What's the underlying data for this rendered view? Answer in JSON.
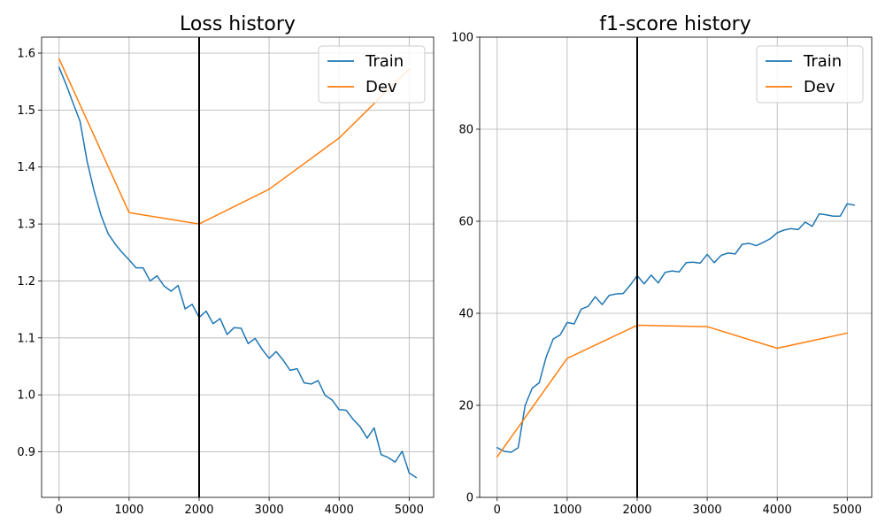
{
  "chart_data": [
    {
      "type": "line",
      "title": "Loss history",
      "xlabel": "",
      "ylabel": "",
      "xlim": [
        -250,
        5350
      ],
      "ylim": [
        0.82,
        1.628
      ],
      "xticks": [
        0,
        1000,
        2000,
        3000,
        4000,
        5000
      ],
      "xtick_labels": [
        "0",
        "1000",
        "2000",
        "3000",
        "4000",
        "5000"
      ],
      "yticks": [
        0.9,
        1.0,
        1.1,
        1.2,
        1.3,
        1.4,
        1.5,
        1.6
      ],
      "ytick_labels": [
        "0.9",
        "1.0",
        "1.1",
        "1.2",
        "1.3",
        "1.4",
        "1.5",
        "1.6"
      ],
      "grid": true,
      "legend_position": "top-right",
      "vline_x": 2000,
      "series": [
        {
          "name": "Train",
          "color": "#1f77b4",
          "x": [
            0,
            100,
            200,
            300,
            400,
            500,
            600,
            700,
            800,
            900,
            1000,
            1100,
            1200,
            1300,
            1400,
            1500,
            1600,
            1700,
            1800,
            1900,
            2000,
            2100,
            2200,
            2300,
            2400,
            2500,
            2600,
            2700,
            2800,
            2900,
            3000,
            3100,
            3200,
            3300,
            3400,
            3500,
            3600,
            3700,
            3800,
            3900,
            4000,
            4100,
            4200,
            4300,
            4400,
            4500,
            4600,
            4700,
            4800,
            4900,
            5000,
            5100
          ],
          "y": [
            1.575,
            1.545,
            1.512,
            1.48,
            1.41,
            1.358,
            1.315,
            1.283,
            1.265,
            1.25,
            1.237,
            1.223,
            1.223,
            1.2,
            1.209,
            1.191,
            1.182,
            1.192,
            1.151,
            1.159,
            1.136,
            1.147,
            1.125,
            1.134,
            1.106,
            1.118,
            1.117,
            1.09,
            1.099,
            1.08,
            1.064,
            1.076,
            1.061,
            1.043,
            1.046,
            1.021,
            1.019,
            1.025,
            0.999,
            0.991,
            0.974,
            0.973,
            0.957,
            0.944,
            0.924,
            0.942,
            0.895,
            0.89,
            0.882,
            0.901,
            0.863,
            0.855
          ]
        },
        {
          "name": "Dev",
          "color": "#ff7f0e",
          "x": [
            0,
            1000,
            2000,
            3000,
            4000,
            5000
          ],
          "y": [
            1.59,
            1.32,
            1.3,
            1.361,
            1.451,
            1.572
          ]
        }
      ]
    },
    {
      "type": "line",
      "title": "f1-score history",
      "xlabel": "",
      "ylabel": "",
      "xlim": [
        -250,
        5350
      ],
      "ylim": [
        0,
        100
      ],
      "xticks": [
        0,
        1000,
        2000,
        3000,
        4000,
        5000
      ],
      "xtick_labels": [
        "0",
        "1000",
        "2000",
        "3000",
        "4000",
        "5000"
      ],
      "yticks": [
        0,
        20,
        40,
        60,
        80,
        100
      ],
      "ytick_labels": [
        "0",
        "20",
        "40",
        "60",
        "80",
        "100"
      ],
      "grid": true,
      "legend_position": "top-right",
      "vline_x": 2000,
      "series": [
        {
          "name": "Train",
          "color": "#1f77b4",
          "x": [
            0,
            100,
            200,
            300,
            400,
            500,
            600,
            700,
            800,
            900,
            1000,
            1100,
            1200,
            1300,
            1400,
            1500,
            1600,
            1700,
            1800,
            1900,
            2000,
            2100,
            2200,
            2300,
            2400,
            2500,
            2600,
            2700,
            2800,
            2900,
            3000,
            3100,
            3200,
            3300,
            3400,
            3500,
            3600,
            3700,
            3800,
            3900,
            4000,
            4100,
            4200,
            4300,
            4400,
            4500,
            4600,
            4700,
            4800,
            4900,
            5000,
            5100
          ],
          "y": [
            10.8,
            10.0,
            9.8,
            10.8,
            20.0,
            23.7,
            24.9,
            30.5,
            34.4,
            35.3,
            38.0,
            37.7,
            40.9,
            41.5,
            43.6,
            41.9,
            43.9,
            44.2,
            44.3,
            46.1,
            48.2,
            46.4,
            48.3,
            46.6,
            48.9,
            49.2,
            49.0,
            51.0,
            51.1,
            50.9,
            52.8,
            51.0,
            52.6,
            53.1,
            52.9,
            55.0,
            55.2,
            54.7,
            55.4,
            56.2,
            57.5,
            58.1,
            58.4,
            58.2,
            59.8,
            58.9,
            61.6,
            61.4,
            61.1,
            61.1,
            63.8,
            63.5
          ]
        },
        {
          "name": "Dev",
          "color": "#ff7f0e",
          "x": [
            0,
            1000,
            2000,
            3000,
            4000,
            5000
          ],
          "y": [
            8.8,
            30.2,
            37.4,
            37.1,
            32.4,
            35.7
          ]
        }
      ]
    }
  ]
}
